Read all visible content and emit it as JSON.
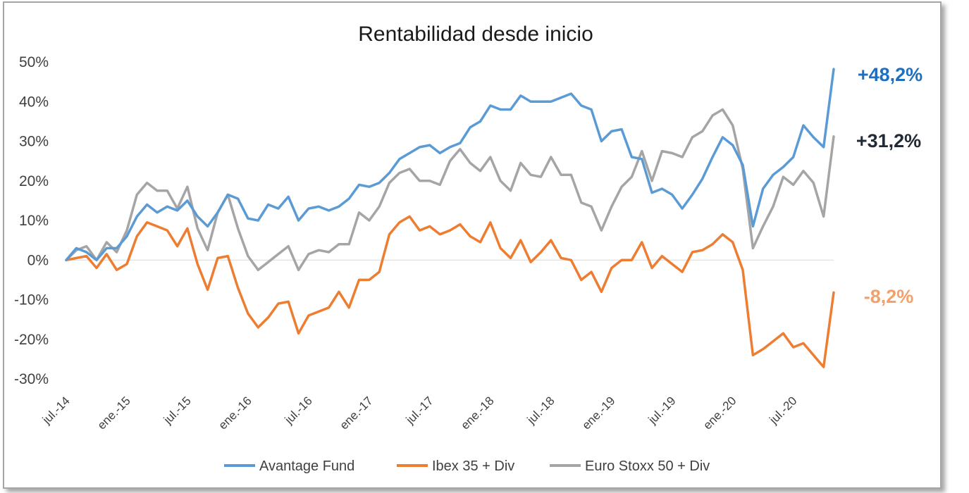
{
  "chart_data": {
    "type": "line",
    "title": "Rentabilidad desde inicio",
    "xlabel": "",
    "ylabel": "",
    "ylim": [
      -30,
      50
    ],
    "y_ticks": [
      "50%",
      "40%",
      "30%",
      "20%",
      "10%",
      "0%",
      "-10%",
      "-20%",
      "-30%"
    ],
    "x_ticks": [
      "jul.-14",
      "ene.-15",
      "jul.-15",
      "ene.-16",
      "jul.-16",
      "ene.-17",
      "jul.-17",
      "ene.-18",
      "jul.-18",
      "ene.-19",
      "jul.-19",
      "ene.-20",
      "jul.-20"
    ],
    "grid": false,
    "legend": "bottom",
    "annotations": [
      {
        "text": "+48,2%",
        "series": "Avantage Fund",
        "color": "#1f6fbf"
      },
      {
        "text": "+31,2%",
        "series": "Euro Stoxx 50 + Div",
        "color": "#222a35"
      },
      {
        "text": "-8,2%",
        "series": "Ibex 35 + Div",
        "color": "#f4a06a"
      }
    ],
    "series": [
      {
        "name": "Avantage Fund",
        "color": "#5b9bd5",
        "values": [
          0,
          3,
          2,
          0,
          3,
          3,
          6,
          11,
          14,
          12,
          13.5,
          12.5,
          15,
          11,
          8.5,
          12,
          16.5,
          15.5,
          10.5,
          10,
          14,
          13,
          16,
          10,
          13,
          13.5,
          12.5,
          13.5,
          15.5,
          19,
          18.5,
          19.5,
          22,
          25.5,
          27,
          28.5,
          29,
          27,
          28.5,
          29.5,
          33.5,
          35,
          39,
          38,
          38,
          41.5,
          40,
          40,
          40,
          41,
          42,
          39,
          38,
          30,
          32.5,
          33,
          26,
          25.5,
          17,
          18,
          16.5,
          13,
          16.5,
          20.5,
          26,
          31,
          29,
          24,
          8.5,
          18,
          21.5,
          23.5,
          26,
          34,
          31,
          28.5,
          48.2
        ]
      },
      {
        "name": "Ibex 35 + Div",
        "color": "#ed7d31",
        "values": [
          0,
          0.5,
          1,
          -2,
          1.5,
          -2.5,
          -1,
          6,
          9.5,
          8.5,
          7.5,
          3.5,
          8,
          -1,
          -7.5,
          0.5,
          1,
          -7,
          -13.5,
          -17,
          -14.5,
          -11,
          -10.5,
          -18.5,
          -14,
          -13,
          -12,
          -8,
          -12,
          -5,
          -5,
          -3,
          6.5,
          9.5,
          11,
          7.5,
          8.5,
          6.5,
          7.5,
          9,
          6,
          4.5,
          9.5,
          3,
          0.5,
          5,
          -0.5,
          2,
          5,
          0.5,
          0,
          -5,
          -3,
          -8,
          -2,
          0,
          0,
          4.5,
          -2,
          1,
          -1,
          -3,
          2,
          2.5,
          4,
          6.5,
          4.5,
          -2.5,
          -24,
          -22.5,
          -20.5,
          -18.5,
          -22,
          -21,
          -24,
          -27,
          -8.2
        ]
      },
      {
        "name": "Euro Stoxx 50 + Div",
        "color": "#a5a5a5",
        "values": [
          0,
          2.5,
          3.5,
          0,
          4.5,
          2,
          7.5,
          16.5,
          19.5,
          17.5,
          17.5,
          13,
          18.5,
          8,
          2.5,
          12,
          16.5,
          8,
          1,
          -2.5,
          -0.5,
          1.5,
          3.5,
          -2.5,
          1.5,
          2.5,
          2,
          4,
          4,
          12,
          10,
          13.5,
          19.5,
          22,
          23,
          20,
          20,
          19,
          25,
          28,
          24.5,
          22.5,
          26,
          20,
          17.5,
          24.5,
          21.5,
          21,
          26,
          21.5,
          21.5,
          14.5,
          13.5,
          7.5,
          13.5,
          18.5,
          21,
          27.5,
          20,
          27.5,
          27,
          26,
          31,
          32.5,
          36.5,
          38,
          34,
          23,
          3,
          8.5,
          13.5,
          21,
          19,
          22.5,
          19.5,
          11,
          31.2
        ]
      }
    ]
  }
}
